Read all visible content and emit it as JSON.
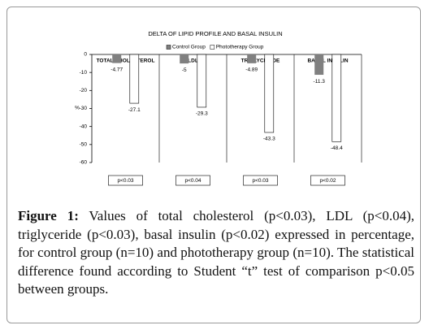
{
  "chart_data": {
    "type": "bar",
    "title": "DELTA OF LIPID PROFILE AND BASAL INSULIN",
    "categories": [
      "TOTAL CHOLESTEROL",
      "LDL",
      "TRIGLYCERIDE",
      "BASAL INSULIN"
    ],
    "series": [
      {
        "name": "Control Group",
        "color": "#808080",
        "values": [
          -4.77,
          -5,
          -4.89,
          -11.3
        ]
      },
      {
        "name": "Phototherapy Group",
        "color": "#ffffff",
        "values": [
          -27.1,
          -29.3,
          -43.3,
          -48.4
        ]
      }
    ],
    "y_label": "%",
    "ylim": [
      -60,
      0
    ],
    "yticks": [
      0,
      -10,
      -20,
      -30,
      -40,
      -50,
      -60
    ],
    "annotations": [
      "p<0.03",
      "p<0.04",
      "p<0.03",
      "p<0.02"
    ],
    "legend": "top"
  },
  "caption": {
    "label": "Figure 1:",
    "text": "Values of total cholesterol (p<0.03), LDL (p<0.04), triglyceride (p<0.03), basal insulin (p<0.02) expressed in percentage, for control group (n=10) and phototherapy group (n=10). The statistical difference found according to Student “t” test of comparison p<0.05 between groups."
  }
}
